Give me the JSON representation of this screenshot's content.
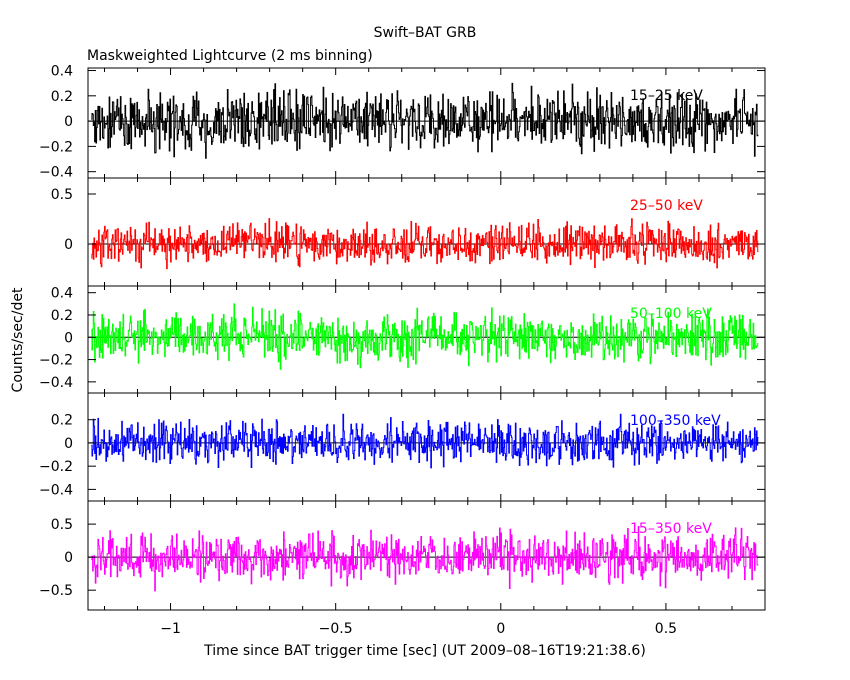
{
  "chart_data": {
    "type": "line",
    "title": "Swift–BAT GRB",
    "subtitle": "Maskweighted Lightcurve (2 ms binning)",
    "xlabel": "Time since BAT trigger time [sec] (UT 2009–08–16T19:21:38.6)",
    "ylabel": "Counts/sec/det",
    "xlim": [
      -1.25,
      0.8
    ],
    "x_range": [
      -1.24,
      0.78
    ],
    "bin_width": 0.002,
    "xticks": [
      -1,
      -0.5,
      0,
      0.5
    ],
    "xtick_labels": [
      "−1",
      "−0.5",
      "0",
      "0.5"
    ],
    "grid": false,
    "panels": [
      {
        "name": "15–25 keV",
        "color": "#000000",
        "ylim": [
          -0.45,
          0.42
        ],
        "yticks": [
          -0.4,
          -0.2,
          0,
          0.2,
          0.4
        ],
        "ytick_labels": [
          "−0.4",
          "−0.2",
          "0",
          "0.2",
          "0.4"
        ],
        "noise_amp": 0.14
      },
      {
        "name": "25–50 keV",
        "color": "#ff0000",
        "ylim": [
          -0.42,
          0.66
        ],
        "yticks": [
          0,
          0.5
        ],
        "ytick_labels": [
          "0",
          "0.5"
        ],
        "noise_amp": 0.12
      },
      {
        "name": "50–100 keV",
        "color": "#00ff00",
        "ylim": [
          -0.5,
          0.46
        ],
        "yticks": [
          -0.4,
          -0.2,
          0,
          0.2,
          0.4
        ],
        "ytick_labels": [
          "−0.4",
          "−0.2",
          "0",
          "0.2",
          "0.4"
        ],
        "noise_amp": 0.13
      },
      {
        "name": "100–350 keV",
        "color": "#0000ff",
        "ylim": [
          -0.5,
          0.43
        ],
        "yticks": [
          -0.4,
          -0.2,
          0,
          0.2
        ],
        "ytick_labels": [
          "−0.4",
          "−0.2",
          "0",
          "0.2"
        ],
        "noise_amp": 0.11
      },
      {
        "name": "15–350 keV",
        "color": "#ff00ff",
        "ylim": [
          -0.8,
          0.85
        ],
        "yticks": [
          -0.5,
          0,
          0.5
        ],
        "ytick_labels": [
          "−0.5",
          "0",
          "0.5"
        ],
        "noise_amp": 0.22
      }
    ]
  }
}
